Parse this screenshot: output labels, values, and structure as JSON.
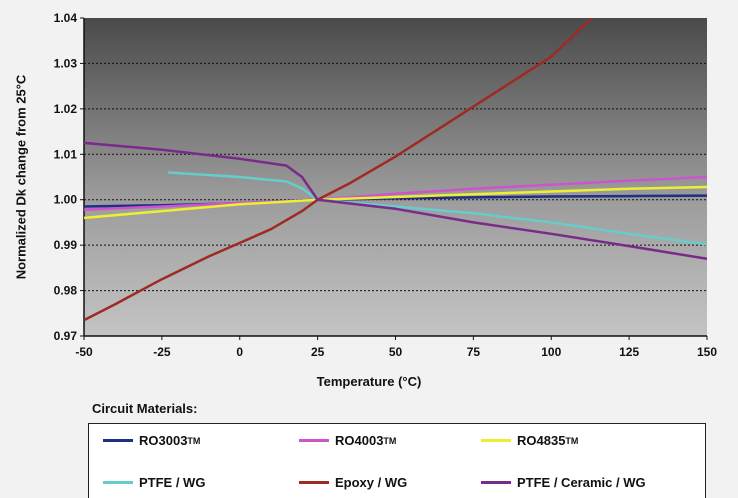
{
  "chart_data": {
    "type": "line",
    "title": "",
    "xlabel": "Temperature (°C)",
    "ylabel": "Normalized Dk change from 25°C",
    "xlim": [
      -50,
      150
    ],
    "ylim": [
      0.97,
      1.04
    ],
    "x_ticks": [
      "-50",
      "-25",
      "0",
      "25",
      "50",
      "75",
      "100",
      "125",
      "150"
    ],
    "y_ticks": [
      "0.97",
      "0.98",
      "0.99",
      "1.00",
      "1.01",
      "1.02",
      "1.03",
      "1.04"
    ],
    "grid": "horizontal dotted",
    "legend_title": "Circuit Materials:",
    "series": [
      {
        "name": "RO3003",
        "tm": "TM",
        "color": "#1f2f86",
        "x": [
          -50,
          -25,
          0,
          25,
          50,
          75,
          100,
          125,
          150
        ],
        "y": [
          0.9985,
          0.9988,
          0.9992,
          1.0,
          1.0003,
          1.0005,
          1.0007,
          1.0008,
          1.0009
        ]
      },
      {
        "name": "RO4003",
        "tm": "TM",
        "color": "#cc55cc",
        "x": [
          -50,
          -25,
          0,
          20,
          25,
          50,
          75,
          100,
          125,
          150
        ],
        "y": [
          0.9978,
          0.9985,
          0.9993,
          0.9998,
          1.0,
          1.0013,
          1.0024,
          1.0033,
          1.0042,
          1.005
        ]
      },
      {
        "name": "RO4835",
        "tm": "TM",
        "color": "#eeee33",
        "x": [
          -50,
          -25,
          0,
          25,
          50,
          75,
          100,
          125,
          150
        ],
        "y": [
          0.996,
          0.9975,
          0.999,
          1.0,
          1.0006,
          1.0012,
          1.0018,
          1.0024,
          1.0028
        ]
      },
      {
        "name": "PTFE / WG",
        "tm": "",
        "color": "#66cccc",
        "x": [
          -23,
          0,
          15,
          20,
          25,
          50,
          75,
          100,
          125,
          150
        ],
        "y": [
          1.006,
          1.005,
          1.004,
          1.0025,
          1.0,
          0.9985,
          0.997,
          0.995,
          0.9925,
          0.9902
        ]
      },
      {
        "name": "Epoxy / WG",
        "tm": "",
        "color": "#9e2a22",
        "x": [
          -50,
          -40,
          -25,
          -10,
          0,
          10,
          20,
          25,
          35,
          50,
          75,
          100,
          113
        ],
        "y": [
          0.9735,
          0.977,
          0.9825,
          0.9875,
          0.9905,
          0.9935,
          0.9975,
          1.0,
          1.0035,
          1.0095,
          1.0205,
          1.0315,
          1.04
        ]
      },
      {
        "name": "PTFE / Ceramic / WG",
        "tm": "",
        "color": "#7a2a8a",
        "x": [
          -50,
          -25,
          0,
          15,
          20,
          25,
          50,
          75,
          100,
          125,
          150
        ],
        "y": [
          1.0125,
          1.011,
          1.009,
          1.0075,
          1.005,
          1.0,
          0.998,
          0.995,
          0.9925,
          0.9898,
          0.987
        ]
      }
    ]
  }
}
